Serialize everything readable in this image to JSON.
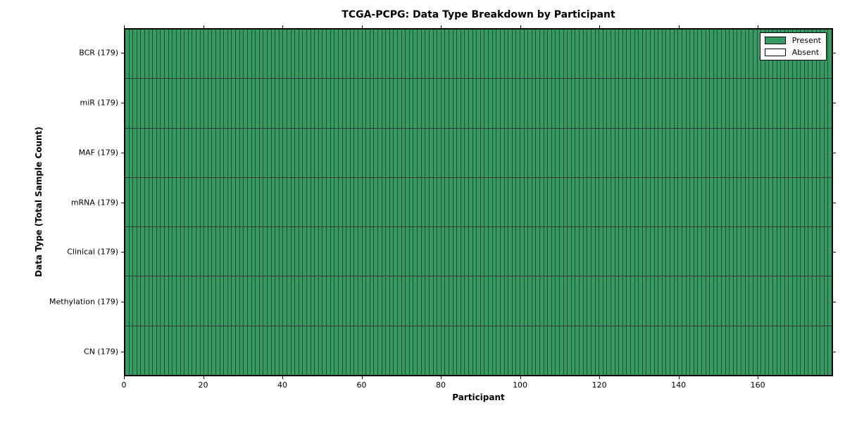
{
  "chart_data": {
    "type": "heatmap",
    "title": "TCGA-PCPG: Data Type Breakdown by Participant",
    "xlabel": "Participant",
    "ylabel": "Data Type (Total Sample Count)",
    "x_ticks": [
      0,
      20,
      40,
      60,
      80,
      100,
      120,
      140,
      160
    ],
    "x_max": 179,
    "participants_total": 179,
    "rows": [
      {
        "label": "BCR (179)",
        "data_type": "BCR",
        "total_samples": 179,
        "present_count": 179,
        "absent_count": 0
      },
      {
        "label": "miR (179)",
        "data_type": "miR",
        "total_samples": 179,
        "present_count": 179,
        "absent_count": 0
      },
      {
        "label": "MAF (179)",
        "data_type": "MAF",
        "total_samples": 179,
        "present_count": 179,
        "absent_count": 0
      },
      {
        "label": "mRNA (179)",
        "data_type": "mRNA",
        "total_samples": 179,
        "present_count": 179,
        "absent_count": 0
      },
      {
        "label": "Clinical (179)",
        "data_type": "Clinical",
        "total_samples": 179,
        "present_count": 179,
        "absent_count": 0
      },
      {
        "label": "Methylation (179)",
        "data_type": "Methylation",
        "total_samples": 179,
        "present_count": 179,
        "absent_count": 0
      },
      {
        "label": "CN (179)",
        "data_type": "CN",
        "total_samples": 179,
        "present_count": 179,
        "absent_count": 0
      }
    ],
    "legend": {
      "position": "upper right",
      "entries": [
        {
          "label": "Present",
          "color": "#379a62"
        },
        {
          "label": "Absent",
          "color": "#ffffff"
        }
      ]
    },
    "colors": {
      "present": "#379a62",
      "absent": "#ffffff",
      "cell_edge": "rgba(0,0,0,0.48)",
      "row_separator": "rgba(0,0,0,0.78)",
      "axes_edge": "#000000"
    }
  }
}
